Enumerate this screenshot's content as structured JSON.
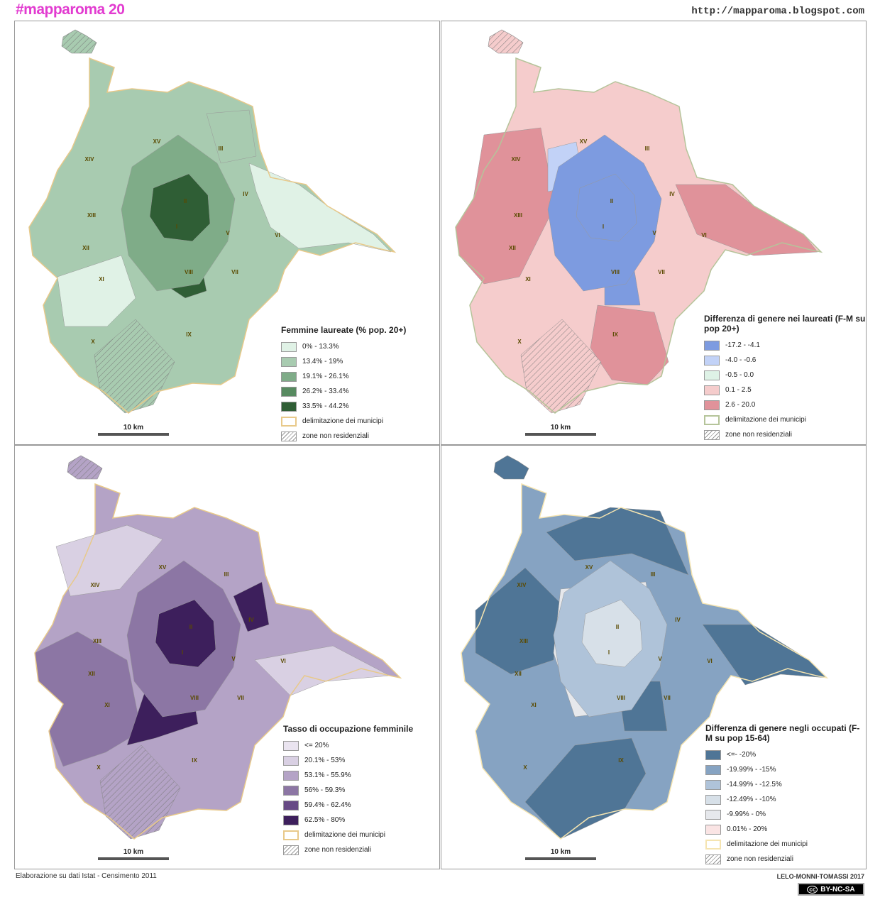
{
  "header": {
    "brand": "#mapparoma 20",
    "url": "http://mapparoma.blogspot.com"
  },
  "municipi": [
    "XV",
    "III",
    "XIV",
    "IV",
    "II",
    "XIII",
    "I",
    "V",
    "VI",
    "XII",
    "VII",
    "VIII",
    "XI",
    "IX",
    "X"
  ],
  "panels": [
    {
      "id": "laureate",
      "legend_title": "Femmine laureate (% pop. 20+)",
      "base": "#a8cbb0",
      "classes": [
        {
          "label": "0% - 13.3%",
          "color": "#e0f2e6"
        },
        {
          "label": "13.4% - 19%",
          "color": "#a8cbb0"
        },
        {
          "label": "19.1% - 26.1%",
          "color": "#7fac88"
        },
        {
          "label": "26.2% - 33.4%",
          "color": "#578a60"
        },
        {
          "label": "33.5% - 44.2%",
          "color": "#2f5e35"
        }
      ],
      "border_label": "delimitazione dei municipi",
      "border_color": "#e8c98a",
      "hatch_label": "zone non residenziali",
      "scale": "10 km"
    },
    {
      "id": "diff-laureati",
      "legend_title": "Differenza di genere nei laureati (F-M su pop 20+)",
      "base": "#f5cccc",
      "classes": [
        {
          "label": "-17.2 - -4.1",
          "color": "#7d9be0"
        },
        {
          "label": "-4.0 - -0.6",
          "color": "#c2d2f7"
        },
        {
          "label": "-0.5 - 0.0",
          "color": "#def2e6"
        },
        {
          "label": "0.1 - 2.5",
          "color": "#f5cccc"
        },
        {
          "label": "2.6 - 20.0",
          "color": "#e0929a"
        }
      ],
      "border_label": "delimitazione dei municipi",
      "border_color": "#b5c49a",
      "hatch_label": "zone non residenziali",
      "scale": "10 km"
    },
    {
      "id": "occupazione",
      "legend_title": "Tasso di occupazione femminile",
      "base": "#b4a3c6",
      "classes": [
        {
          "label": "<= 20%",
          "color": "#eae4f0"
        },
        {
          "label": "20.1% - 53%",
          "color": "#d9d0e3"
        },
        {
          "label": "53.1% - 55.9%",
          "color": "#b4a3c6"
        },
        {
          "label": "56% - 59.3%",
          "color": "#8c76a4"
        },
        {
          "label": "59.4% - 62.4%",
          "color": "#674a85"
        },
        {
          "label": "62.5% - 80%",
          "color": "#3d1f5c"
        }
      ],
      "border_label": "delimitazione dei municipi",
      "border_color": "#e8c98a",
      "hatch_label": "zone non residenziali",
      "scale": "10 km"
    },
    {
      "id": "diff-occupati",
      "legend_title": "Differenza di genere negli occupati (F-M su pop 15-64)",
      "base": "#86a3c2",
      "classes": [
        {
          "label": "<=- -20%",
          "color": "#4f7596"
        },
        {
          "label": "-19.99% - -15%",
          "color": "#86a3c2"
        },
        {
          "label": "-14.99% - -12.5%",
          "color": "#afc3d9"
        },
        {
          "label": "-12.49% - -10%",
          "color": "#d7e0e8"
        },
        {
          "label": "-9.99% - 0%",
          "color": "#e6e8ec"
        },
        {
          "label": "0.01% - 20%",
          "color": "#fae4e4"
        }
      ],
      "border_label": "delimitazione dei municipi",
      "border_color": "#f5e4b0",
      "hatch_label": "zone non residenziali",
      "scale": "10 km"
    }
  ],
  "footer": {
    "source": "Elaborazione su dati Istat - Censimento 2011",
    "authors": "LELO-MONNI-TOMASSI 2017",
    "license": "BY-NC-SA",
    "cc": "cc"
  }
}
